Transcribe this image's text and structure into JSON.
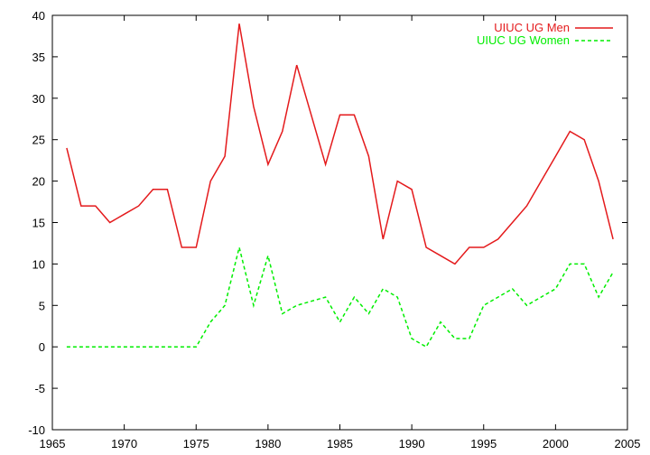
{
  "chart_data": {
    "type": "line",
    "title": "",
    "xlabel": "",
    "ylabel": "",
    "xlim": [
      1965,
      2005
    ],
    "ylim": [
      -10,
      40
    ],
    "xticks": [
      1965,
      1970,
      1975,
      1980,
      1985,
      1990,
      1995,
      2000,
      2005
    ],
    "yticks": [
      -10,
      -5,
      0,
      5,
      10,
      15,
      20,
      25,
      30,
      35,
      40
    ],
    "grid": false,
    "legend_position": "top-right",
    "series": [
      {
        "name": "UIUC UG Men",
        "color": "#e41a1c",
        "style": "solid",
        "x": [
          1966,
          1967,
          1968,
          1969,
          1970,
          1971,
          1972,
          1973,
          1974,
          1975,
          1976,
          1977,
          1978,
          1979,
          1980,
          1981,
          1982,
          1983,
          1984,
          1985,
          1986,
          1987,
          1988,
          1989,
          1990,
          1991,
          1992,
          1993,
          1994,
          1995,
          1996,
          1997,
          1998,
          1999,
          2000,
          2001,
          2002,
          2003,
          2004
        ],
        "y": [
          24,
          17,
          17,
          15,
          16,
          17,
          19,
          19,
          12,
          12,
          20,
          23,
          39,
          29,
          22,
          26,
          34,
          28,
          22,
          28,
          28,
          23,
          13,
          20,
          19,
          12,
          11,
          10,
          12,
          12,
          13,
          15,
          17,
          20,
          23,
          26,
          25,
          20,
          13
        ]
      },
      {
        "name": "UIUC UG Women",
        "color": "#00ee00",
        "style": "dashed",
        "x": [
          1966,
          1967,
          1968,
          1969,
          1970,
          1971,
          1972,
          1973,
          1974,
          1975,
          1976,
          1977,
          1978,
          1979,
          1980,
          1981,
          1982,
          1983,
          1984,
          1985,
          1986,
          1987,
          1988,
          1989,
          1990,
          1991,
          1992,
          1993,
          1994,
          1995,
          1996,
          1997,
          1998,
          1999,
          2000,
          2001,
          2002,
          2003,
          2004
        ],
        "y": [
          0,
          0,
          0,
          0,
          0,
          0,
          0,
          0,
          0,
          0,
          3,
          5,
          12,
          5,
          11,
          4,
          5,
          5.5,
          6,
          3,
          6,
          4,
          7,
          6,
          1,
          0,
          3,
          1,
          1,
          5,
          6,
          7,
          5,
          6,
          7,
          10,
          10,
          6,
          9
        ]
      }
    ]
  }
}
